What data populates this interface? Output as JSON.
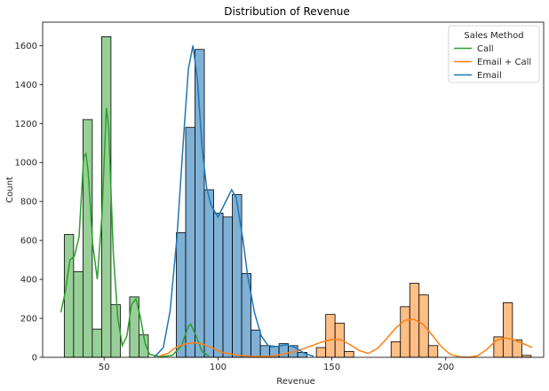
{
  "chart_data": {
    "type": "histogram",
    "title": "Distribution of Revenue",
    "xlabel": "Revenue",
    "ylabel": "Count",
    "xlim": [
      23,
      243
    ],
    "ylim": [
      0,
      1720
    ],
    "xticks": [
      50,
      100,
      150,
      200
    ],
    "yticks": [
      0,
      200,
      400,
      600,
      800,
      1000,
      1200,
      1400,
      1600
    ],
    "bin_width": 4.1,
    "grid": false,
    "legend": {
      "title": "Sales Method",
      "placement": "top-right",
      "entries": [
        {
          "name": "Call",
          "color": "#2ca02c"
        },
        {
          "name": "Email + Call",
          "color": "#ff7f0e"
        },
        {
          "name": "Email",
          "color": "#1f77b4"
        }
      ]
    },
    "series": [
      {
        "name": "Call",
        "color": "#2ca02c",
        "fill": "#98cf98",
        "bins": [
          {
            "x": 32.5,
            "y": 630
          },
          {
            "x": 36.6,
            "y": 440
          },
          {
            "x": 40.7,
            "y": 1220
          },
          {
            "x": 44.8,
            "y": 145
          },
          {
            "x": 48.9,
            "y": 1645
          },
          {
            "x": 53.0,
            "y": 270
          },
          {
            "x": 61.2,
            "y": 310
          },
          {
            "x": 65.3,
            "y": 115
          },
          {
            "x": 85.8,
            "y": 180
          }
        ],
        "kde": [
          [
            31,
            230
          ],
          [
            33,
            340
          ],
          [
            35,
            500
          ],
          [
            37,
            520
          ],
          [
            39,
            620
          ],
          [
            41,
            1030
          ],
          [
            42,
            1045
          ],
          [
            43,
            950
          ],
          [
            45,
            580
          ],
          [
            47,
            400
          ],
          [
            49,
            720
          ],
          [
            51,
            1280
          ],
          [
            52,
            1180
          ],
          [
            54,
            540
          ],
          [
            56,
            200
          ],
          [
            58,
            60
          ],
          [
            60,
            110
          ],
          [
            62,
            270
          ],
          [
            64,
            300
          ],
          [
            66,
            200
          ],
          [
            68,
            70
          ],
          [
            70,
            15
          ],
          [
            75,
            3
          ],
          [
            80,
            10
          ],
          [
            84,
            60
          ],
          [
            87,
            160
          ],
          [
            88,
            170
          ],
          [
            90,
            120
          ],
          [
            93,
            30
          ],
          [
            96,
            5
          ]
        ]
      },
      {
        "name": "Email + Call",
        "color": "#ff7f0e",
        "fill": "#ffbe85",
        "bins": [
          {
            "x": 85.8,
            "y": 345
          },
          {
            "x": 143.2,
            "y": 50
          },
          {
            "x": 147.3,
            "y": 220
          },
          {
            "x": 151.4,
            "y": 175
          },
          {
            "x": 155.5,
            "y": 30
          },
          {
            "x": 176.0,
            "y": 80
          },
          {
            "x": 180.1,
            "y": 260
          },
          {
            "x": 184.2,
            "y": 380
          },
          {
            "x": 188.3,
            "y": 320
          },
          {
            "x": 192.4,
            "y": 60
          },
          {
            "x": 221.1,
            "y": 105
          },
          {
            "x": 225.2,
            "y": 280
          },
          {
            "x": 229.3,
            "y": 90
          },
          {
            "x": 233.4,
            "y": 10
          }
        ],
        "kde": [
          [
            74,
            5
          ],
          [
            78,
            20
          ],
          [
            82,
            55
          ],
          [
            86,
            70
          ],
          [
            90,
            75
          ],
          [
            94,
            65
          ],
          [
            98,
            45
          ],
          [
            102,
            25
          ],
          [
            108,
            12
          ],
          [
            115,
            4
          ],
          [
            122,
            5
          ],
          [
            128,
            15
          ],
          [
            134,
            30
          ],
          [
            140,
            55
          ],
          [
            146,
            80
          ],
          [
            150,
            92
          ],
          [
            154,
            90
          ],
          [
            158,
            65
          ],
          [
            162,
            35
          ],
          [
            166,
            20
          ],
          [
            170,
            45
          ],
          [
            174,
            95
          ],
          [
            178,
            150
          ],
          [
            182,
            190
          ],
          [
            186,
            195
          ],
          [
            190,
            170
          ],
          [
            194,
            115
          ],
          [
            198,
            55
          ],
          [
            202,
            15
          ],
          [
            206,
            3
          ],
          [
            210,
            0
          ],
          [
            214,
            8
          ],
          [
            218,
            40
          ],
          [
            222,
            85
          ],
          [
            226,
            100
          ],
          [
            230,
            90
          ],
          [
            234,
            70
          ],
          [
            238,
            50
          ]
        ]
      },
      {
        "name": "Email",
        "color": "#1f77b4",
        "fill": "#7fb0d5",
        "bins": [
          {
            "x": 81.7,
            "y": 640
          },
          {
            "x": 85.8,
            "y": 1180
          },
          {
            "x": 89.9,
            "y": 1580
          },
          {
            "x": 94.0,
            "y": 860
          },
          {
            "x": 98.1,
            "y": 740
          },
          {
            "x": 102.2,
            "y": 720
          },
          {
            "x": 106.3,
            "y": 835
          },
          {
            "x": 110.4,
            "y": 430
          },
          {
            "x": 114.5,
            "y": 140
          },
          {
            "x": 118.6,
            "y": 60
          },
          {
            "x": 122.7,
            "y": 55
          },
          {
            "x": 126.8,
            "y": 70
          },
          {
            "x": 130.9,
            "y": 60
          },
          {
            "x": 135.0,
            "y": 25
          }
        ],
        "kde": [
          [
            72,
            0
          ],
          [
            76,
            50
          ],
          [
            79,
            240
          ],
          [
            82,
            620
          ],
          [
            85,
            1150
          ],
          [
            87,
            1480
          ],
          [
            89,
            1600
          ],
          [
            91,
            1420
          ],
          [
            93,
            1080
          ],
          [
            95,
            870
          ],
          [
            97,
            780
          ],
          [
            100,
            720
          ],
          [
            103,
            790
          ],
          [
            106,
            860
          ],
          [
            108,
            820
          ],
          [
            111,
            600
          ],
          [
            113,
            420
          ],
          [
            116,
            230
          ],
          [
            119,
            110
          ],
          [
            122,
            60
          ],
          [
            126,
            55
          ],
          [
            130,
            65
          ],
          [
            134,
            50
          ],
          [
            138,
            20
          ],
          [
            142,
            5
          ]
        ]
      }
    ]
  }
}
